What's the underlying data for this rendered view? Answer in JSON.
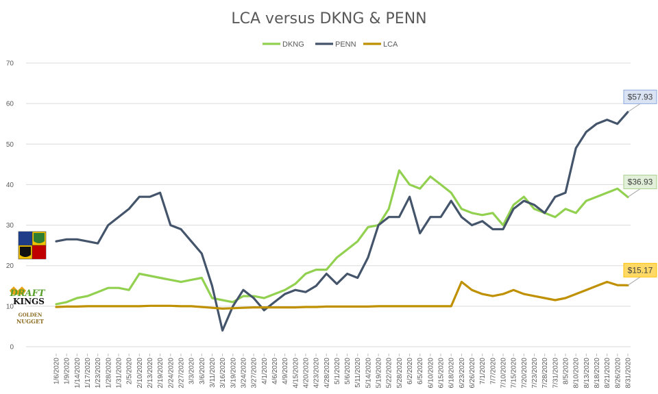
{
  "chart_data": {
    "type": "line",
    "title": "LCA versus DKNG & PENN",
    "xlabel": "",
    "ylabel": "",
    "ylim": [
      0,
      70
    ],
    "yticks": [
      0,
      10,
      20,
      30,
      40,
      50,
      60,
      70
    ],
    "grid": true,
    "legend_position": "top",
    "x_tick_labels": [
      "1/6/2020",
      "1/9/2020",
      "1/14/2020",
      "1/17/2020",
      "1/23/2020",
      "1/28/2020",
      "1/31/2020",
      "2/5/2020",
      "2/10/2020",
      "2/13/2020",
      "2/19/2020",
      "2/24/2020",
      "2/27/2020",
      "3/3/2020",
      "3/6/2020",
      "3/11/2020",
      "3/16/2020",
      "3/19/2020",
      "3/24/2020",
      "3/27/2020",
      "4/1/2020",
      "4/6/2020",
      "4/9/2020",
      "4/15/2020",
      "4/20/2020",
      "4/23/2020",
      "4/28/2020",
      "5/1/2020",
      "5/6/2020",
      "5/11/2020",
      "5/14/2020",
      "5/19/2020",
      "5/22/2020",
      "5/28/2020",
      "6/2/2020",
      "6/5/2020",
      "6/10/2020",
      "6/15/2020",
      "6/18/2020",
      "6/23/2020",
      "6/26/2020",
      "7/1/2020",
      "7/7/2020",
      "7/10/2020",
      "7/15/2020",
      "7/20/2020",
      "7/23/2020",
      "7/28/2020",
      "7/31/2020",
      "8/5/2020",
      "8/10/2020",
      "8/13/2020",
      "8/18/2020",
      "8/21/2020",
      "8/26/2020",
      "8/31/2020"
    ],
    "series": [
      {
        "name": "DKNG",
        "color": "#92d050",
        "values": [
          10.5,
          11,
          12,
          12.5,
          13.5,
          14.5,
          14.5,
          14,
          18,
          17.5,
          17,
          16.5,
          16,
          16.5,
          17,
          12,
          11.5,
          11,
          12.5,
          12.5,
          12,
          13,
          14,
          15.5,
          18,
          19,
          19,
          22,
          24,
          26,
          29.5,
          30,
          34,
          43.5,
          40,
          39,
          42,
          40,
          38,
          34,
          33,
          32.5,
          33,
          30,
          35,
          37,
          34,
          33,
          32,
          34,
          33,
          36,
          37,
          38,
          39,
          36.93
        ]
      },
      {
        "name": "PENN",
        "color": "#44546a",
        "values": [
          26,
          26.5,
          26.5,
          26,
          25.5,
          30,
          32,
          34,
          37,
          37,
          38,
          30,
          29,
          26,
          23,
          15,
          4,
          10,
          14,
          12,
          9,
          11,
          13,
          14,
          13.5,
          15,
          18,
          15.5,
          18,
          17,
          22,
          30,
          32,
          32,
          37,
          28,
          32,
          32,
          36,
          32,
          30,
          31,
          29,
          29,
          34,
          36,
          35,
          33,
          37,
          38,
          49,
          53,
          55,
          56,
          55,
          57.93
        ]
      },
      {
        "name": "LCA",
        "color": "#bf9000",
        "values": [
          9.8,
          9.9,
          9.9,
          10,
          10,
          10,
          10,
          10,
          10,
          10.1,
          10.1,
          10.1,
          10,
          10,
          9.8,
          9.6,
          9.4,
          9.5,
          9.6,
          9.7,
          9.7,
          9.7,
          9.7,
          9.7,
          9.8,
          9.8,
          9.9,
          9.9,
          9.9,
          9.9,
          9.9,
          10,
          10,
          10,
          10,
          10,
          10,
          10,
          10,
          16,
          14,
          13,
          12.5,
          13,
          14,
          13,
          12.5,
          12,
          11.5,
          12,
          13,
          14,
          15,
          16,
          15.2,
          15.17
        ]
      }
    ],
    "annotations": [
      {
        "series": "PENN",
        "label": "$57.93",
        "bg": "#dae3f3",
        "border": "#8faadc"
      },
      {
        "series": "DKNG",
        "label": "$36.93",
        "bg": "#e2f0d9",
        "border": "#a9d18e"
      },
      {
        "series": "LCA",
        "label": "$15.17",
        "bg": "#ffd966",
        "border": "#ffc000"
      }
    ]
  },
  "logos": {
    "draftkings_top": "DRAFT",
    "draftkings_bottom": "KINGS",
    "golden_nugget_top": "GOLDEN",
    "golden_nugget_bottom": "NUGGET"
  }
}
